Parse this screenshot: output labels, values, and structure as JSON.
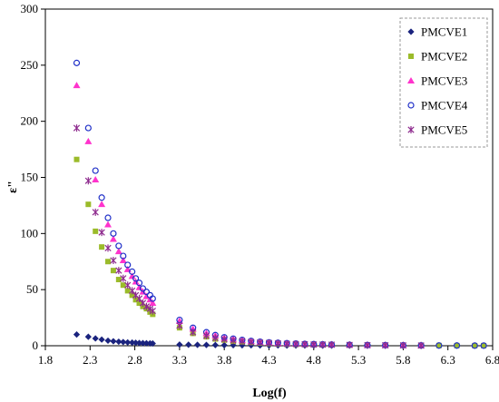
{
  "chart_data": {
    "type": "scatter",
    "xlabel": "Log(f)",
    "ylabel": "ε\"",
    "xlim": [
      1.8,
      6.8
    ],
    "ylim": [
      0,
      300
    ],
    "xticks": [
      1.8,
      2.3,
      2.8,
      3.3,
      3.8,
      4.3,
      4.8,
      5.3,
      5.8,
      6.3,
      6.8
    ],
    "yticks": [
      0,
      50,
      100,
      150,
      200,
      250,
      300
    ],
    "xtick_labels": [
      "1.8",
      "2.3",
      "2.8",
      "3.3",
      "3.8",
      "4.3",
      "4.8",
      "5.3",
      "5.8",
      "6.3",
      "6.8"
    ],
    "ytick_labels": [
      "0",
      "50",
      "100",
      "150",
      "200",
      "250",
      "300"
    ],
    "grid": false,
    "legend_position": "top-right",
    "series": [
      {
        "name": "PMCVE1",
        "marker": "diamond",
        "color": "#1a237e",
        "x": [
          2.15,
          2.28,
          2.36,
          2.43,
          2.5,
          2.56,
          2.62,
          2.67,
          2.72,
          2.77,
          2.81,
          2.85,
          2.89,
          2.93,
          2.97,
          3.0,
          3.3,
          3.4,
          3.5,
          3.6,
          3.7,
          3.8,
          3.9,
          4.0,
          4.1,
          4.2,
          4.3,
          4.4,
          4.5,
          4.6,
          4.7,
          4.8,
          4.9,
          5.0,
          5.2,
          5.4,
          5.6,
          5.8,
          6.0,
          6.2,
          6.4,
          6.6,
          6.7
        ],
        "y": [
          10,
          8,
          6.5,
          5.5,
          4.5,
          4,
          3.6,
          3.3,
          3,
          2.8,
          2.6,
          2.4,
          2.3,
          2.2,
          2.1,
          2,
          1,
          0.9,
          0.8,
          0.7,
          0.6,
          0.5,
          0.5,
          0.4,
          0.4,
          0.3,
          0.3,
          0.3,
          0.2,
          0.2,
          0.2,
          0.2,
          0.1,
          0.1,
          0.1,
          0.1,
          0.1,
          0.1,
          0.1,
          0.1,
          0.1,
          0.1,
          0.1
        ]
      },
      {
        "name": "PMCVE2",
        "marker": "square",
        "color": "#9bbb2a",
        "x": [
          2.15,
          2.28,
          2.36,
          2.43,
          2.5,
          2.56,
          2.62,
          2.67,
          2.72,
          2.77,
          2.81,
          2.85,
          2.89,
          2.93,
          2.97,
          3.0,
          3.3,
          3.45,
          3.6,
          3.7,
          3.8,
          3.9,
          4.0,
          4.1,
          4.2,
          4.3,
          4.4,
          4.5,
          4.6,
          4.7,
          4.8,
          4.9,
          5.0,
          5.2,
          5.4,
          5.6,
          5.8,
          6.0,
          6.2,
          6.4,
          6.6,
          6.7
        ],
        "y": [
          166,
          126,
          102,
          88,
          75,
          67,
          59,
          54,
          49,
          45,
          41,
          38,
          35,
          33,
          30,
          28,
          16,
          11,
          8,
          6,
          5,
          4,
          3.5,
          3,
          2.5,
          2,
          1.8,
          1.5,
          1.3,
          1.1,
          1,
          0.9,
          0.8,
          0.6,
          0.5,
          0.4,
          0.3,
          0.2,
          0.2,
          0.1,
          0.1,
          0.1
        ]
      },
      {
        "name": "PMCVE3",
        "marker": "triangle",
        "color": "#ff33cc",
        "x": [
          2.15,
          2.28,
          2.36,
          2.43,
          2.5,
          2.56,
          2.62,
          2.67,
          2.72,
          2.77,
          2.81,
          2.85,
          2.89,
          2.93,
          2.97,
          3.0,
          3.3,
          3.45,
          3.6,
          3.7,
          3.8,
          3.9,
          4.0,
          4.1,
          4.2,
          4.3,
          4.4,
          4.5,
          4.6,
          4.7,
          4.8,
          4.9,
          5.0,
          5.2,
          5.4,
          5.6,
          5.8,
          6.0
        ],
        "y": [
          232,
          182,
          148,
          126,
          108,
          95,
          84,
          76,
          68,
          62,
          57,
          52,
          48,
          44,
          41,
          38,
          22,
          15,
          11,
          9,
          7,
          6,
          5,
          4,
          3.3,
          2.8,
          2.4,
          2.1,
          1.8,
          1.5,
          1.3,
          1.2,
          1,
          0.8,
          0.6,
          0.5,
          0.4,
          0.3
        ]
      },
      {
        "name": "PMCVE4",
        "marker": "circle",
        "color": "#2030c8",
        "x": [
          2.15,
          2.28,
          2.36,
          2.43,
          2.5,
          2.56,
          2.62,
          2.67,
          2.72,
          2.77,
          2.81,
          2.85,
          2.89,
          2.93,
          2.97,
          3.0,
          3.3,
          3.45,
          3.6,
          3.7,
          3.8,
          3.9,
          4.0,
          4.1,
          4.2,
          4.3,
          4.4,
          4.5,
          4.6,
          4.7,
          4.8,
          4.9,
          5.0,
          5.2,
          5.4,
          5.6,
          5.8,
          6.0,
          6.2,
          6.4,
          6.6,
          6.7
        ],
        "y": [
          252,
          194,
          156,
          132,
          114,
          100,
          89,
          80,
          72,
          66,
          60,
          56,
          51,
          48,
          45,
          42,
          23,
          16,
          12,
          9.5,
          7.5,
          6.3,
          5.2,
          4.3,
          3.6,
          3,
          2.6,
          2.2,
          1.9,
          1.6,
          1.4,
          1.2,
          1,
          0.8,
          0.6,
          0.5,
          0.4,
          0.3,
          0.2,
          0.2,
          0.1,
          0.1
        ]
      },
      {
        "name": "PMCVE5",
        "marker": "star",
        "color": "#8e2b8e",
        "x": [
          2.15,
          2.28,
          2.36,
          2.43,
          2.5,
          2.56,
          2.62,
          2.67,
          2.72,
          2.77,
          2.81,
          2.85,
          2.89,
          2.93,
          2.97,
          3.0,
          3.3,
          3.45,
          3.6,
          3.7,
          3.8,
          3.9,
          4.0,
          4.1,
          4.2,
          4.3,
          4.4,
          4.5,
          4.6,
          4.7,
          4.8,
          4.9,
          5.0,
          5.2,
          5.4,
          5.6,
          5.8,
          6.0
        ],
        "y": [
          194,
          147,
          119,
          101,
          87,
          76,
          67,
          60,
          54,
          49,
          45,
          42,
          38,
          35,
          33,
          31,
          18,
          12,
          9,
          7,
          5.8,
          4.8,
          4,
          3.3,
          2.8,
          2.4,
          2,
          1.7,
          1.5,
          1.3,
          1.1,
          1,
          0.9,
          0.7,
          0.5,
          0.4,
          0.3,
          0.2
        ]
      }
    ]
  }
}
